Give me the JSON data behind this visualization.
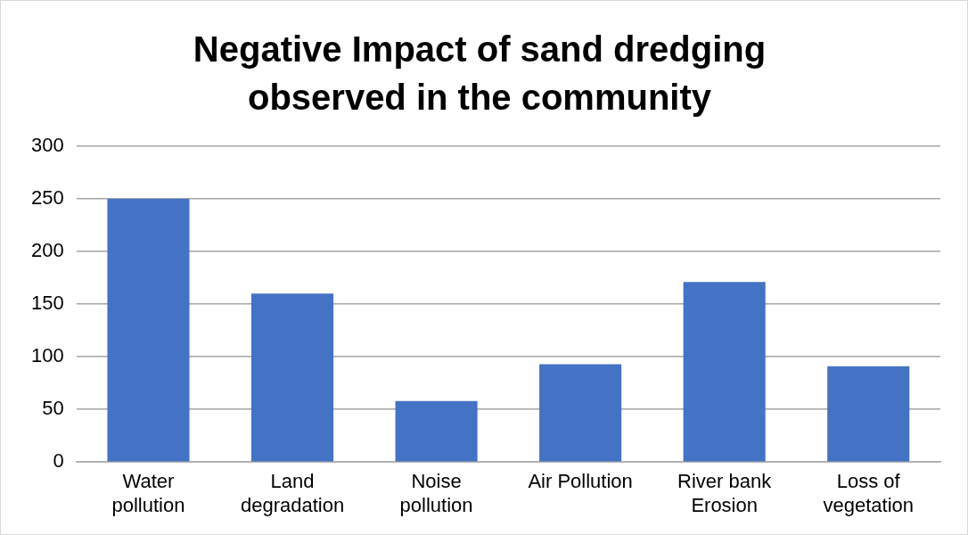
{
  "chart_data": {
    "type": "bar",
    "title": "Negative Impact of sand dredging observed in the community",
    "categories": [
      "Water pollution",
      "Land degradation",
      "Noise pollution",
      "Air Pollution",
      "River bank Erosion",
      "Loss of vegetation"
    ],
    "values": [
      250,
      160,
      58,
      93,
      171,
      91
    ],
    "color": "#4472c4",
    "ylim": [
      0,
      300
    ],
    "yticks": [
      0,
      50,
      100,
      150,
      200,
      250,
      300
    ],
    "grid": "y"
  }
}
